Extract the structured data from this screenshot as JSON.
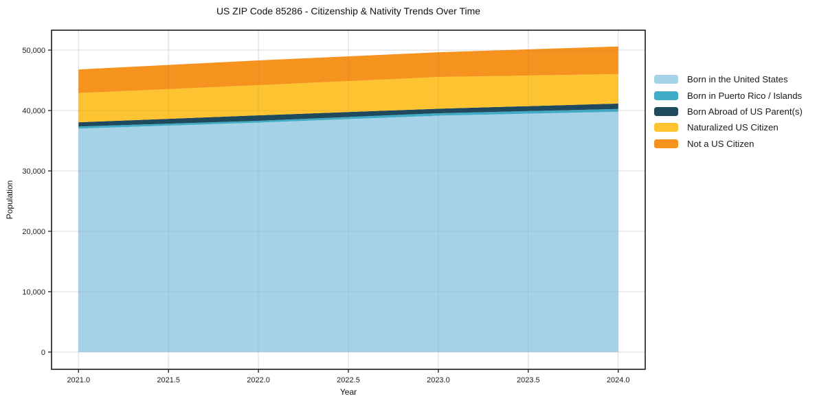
{
  "chart_data": {
    "type": "area",
    "stacked": true,
    "title": "US ZIP Code 85286 - Citizenship & Nativity Trends Over Time",
    "xlabel": "Year",
    "ylabel": "Population",
    "x": [
      2021.0,
      2022.0,
      2023.0,
      2024.0
    ],
    "series": [
      {
        "name": "Born in the United States",
        "color": "#A6D2E7",
        "values": [
          37000,
          38000,
          39150,
          39800
        ]
      },
      {
        "name": "Born in Puerto Rico / Islands",
        "color": "#41ACC6",
        "values": [
          350,
          300,
          400,
          450
        ]
      },
      {
        "name": "Born Abroad of US Parent(s)",
        "color": "#1F4A5E",
        "values": [
          700,
          900,
          750,
          900
        ]
      },
      {
        "name": "Naturalized US Citizen",
        "color": "#FDC330",
        "values": [
          4850,
          5000,
          5250,
          4900
        ]
      },
      {
        "name": "Not a US Citizen",
        "color": "#F6931E",
        "values": [
          3900,
          4100,
          4100,
          4550
        ]
      }
    ],
    "xlim": [
      2020.85,
      2024.15
    ],
    "ylim": [
      -2850,
      53300
    ],
    "xticks": {
      "values": [
        2021.0,
        2021.5,
        2022.0,
        2022.5,
        2023.0,
        2023.5,
        2024.0
      ],
      "labels": [
        "2021.0",
        "2021.5",
        "2022.0",
        "2022.5",
        "2023.0",
        "2023.5",
        "2024.0"
      ]
    },
    "yticks": {
      "values": [
        0,
        10000,
        20000,
        30000,
        40000,
        50000
      ],
      "labels": [
        "0",
        "10,000",
        "20,000",
        "30,000",
        "40,000",
        "50,000"
      ]
    },
    "grid": true,
    "legend_position": "right-outside",
    "colors": {
      "frame": "#1a1a1a",
      "gridline": "#e9e9e9",
      "background": "#ffffff",
      "tick_text": "#1a1a1a"
    }
  }
}
